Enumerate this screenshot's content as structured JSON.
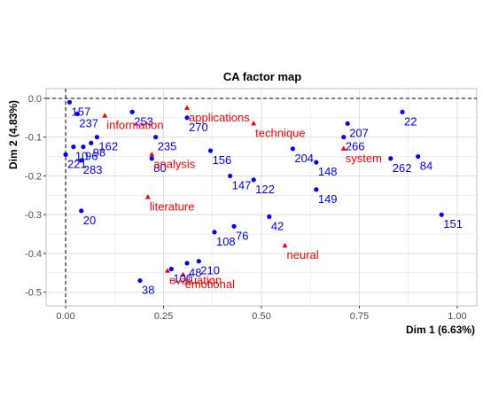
{
  "chart_data": {
    "type": "scatter",
    "title": "CA factor map",
    "xlabel": "Dim 1 (6.63%)",
    "ylabel": "Dim 2 (4.83%)",
    "xlim": [
      -0.05,
      1.05
    ],
    "ylim": [
      -0.535,
      0.025
    ],
    "xticks": [
      "0.00",
      "0.25",
      "0.50",
      "0.75",
      "1.00"
    ],
    "xtick_values": [
      0,
      0.25,
      0.5,
      0.75,
      1.0
    ],
    "yticks": [
      "0.0",
      "-0.1",
      "-0.2",
      "-0.3",
      "-0.4",
      "-0.5"
    ],
    "ytick_values": [
      0,
      -0.1,
      -0.2,
      -0.3,
      -0.4,
      -0.5
    ],
    "grid": true,
    "reference_lines": {
      "x": 0,
      "y": 0
    },
    "colors": {
      "rows": "#0000ff",
      "columns": "#ff0000",
      "panel": "#ffffff",
      "grid": "#dedede"
    },
    "series": [
      {
        "marker": "circle",
        "color": "#0000ff",
        "points": [
          {
            "label": "157",
            "x": 0.01,
            "y": -0.01
          },
          {
            "label": "237",
            "x": 0.03,
            "y": -0.04
          },
          {
            "label": "253",
            "x": 0.17,
            "y": -0.035
          },
          {
            "label": "270",
            "x": 0.31,
            "y": -0.05
          },
          {
            "label": "162",
            "x": 0.08,
            "y": -0.1
          },
          {
            "label": "235",
            "x": 0.23,
            "y": -0.1
          },
          {
            "label": "10",
            "x": 0.02,
            "y": -0.125
          },
          {
            "label": "96",
            "x": 0.045,
            "y": -0.125
          },
          {
            "label": "98",
            "x": 0.065,
            "y": -0.115
          },
          {
            "label": "221",
            "x": 0.0,
            "y": -0.145
          },
          {
            "label": "283",
            "x": 0.04,
            "y": -0.16
          },
          {
            "label": "80",
            "x": 0.22,
            "y": -0.155
          },
          {
            "label": "156",
            "x": 0.37,
            "y": -0.135
          },
          {
            "label": "147",
            "x": 0.42,
            "y": -0.2
          },
          {
            "label": "122",
            "x": 0.48,
            "y": -0.21
          },
          {
            "label": "20",
            "x": 0.04,
            "y": -0.29
          },
          {
            "label": "42",
            "x": 0.52,
            "y": -0.305
          },
          {
            "label": "76",
            "x": 0.43,
            "y": -0.33
          },
          {
            "label": "108",
            "x": 0.38,
            "y": -0.345
          },
          {
            "label": "204",
            "x": 0.58,
            "y": -0.13
          },
          {
            "label": "148",
            "x": 0.64,
            "y": -0.165
          },
          {
            "label": "149",
            "x": 0.64,
            "y": -0.235
          },
          {
            "label": "207",
            "x": 0.72,
            "y": -0.065
          },
          {
            "label": "266",
            "x": 0.71,
            "y": -0.1
          },
          {
            "label": "22",
            "x": 0.86,
            "y": -0.035
          },
          {
            "label": "262",
            "x": 0.83,
            "y": -0.155
          },
          {
            "label": "84",
            "x": 0.9,
            "y": -0.15
          },
          {
            "label": "151",
            "x": 0.96,
            "y": -0.3
          },
          {
            "label": "210",
            "x": 0.34,
            "y": -0.42
          },
          {
            "label": "48",
            "x": 0.31,
            "y": -0.425
          },
          {
            "label": "100",
            "x": 0.27,
            "y": -0.44
          },
          {
            "label": "38",
            "x": 0.19,
            "y": -0.47
          }
        ]
      },
      {
        "marker": "triangle",
        "color": "#ff0000",
        "points": [
          {
            "label": "applications",
            "x": 0.31,
            "y": -0.025
          },
          {
            "label": "information",
            "x": 0.1,
            "y": -0.045
          },
          {
            "label": "technique",
            "x": 0.48,
            "y": -0.065
          },
          {
            "label": "system",
            "x": 0.71,
            "y": -0.13
          },
          {
            "label": "analysis",
            "x": 0.22,
            "y": -0.145
          },
          {
            "label": "literature",
            "x": 0.21,
            "y": -0.255
          },
          {
            "label": "neural",
            "x": 0.56,
            "y": -0.38
          },
          {
            "label": "evaluation",
            "x": 0.26,
            "y": -0.445
          },
          {
            "label": "emotional",
            "x": 0.3,
            "y": -0.455
          }
        ]
      }
    ]
  }
}
